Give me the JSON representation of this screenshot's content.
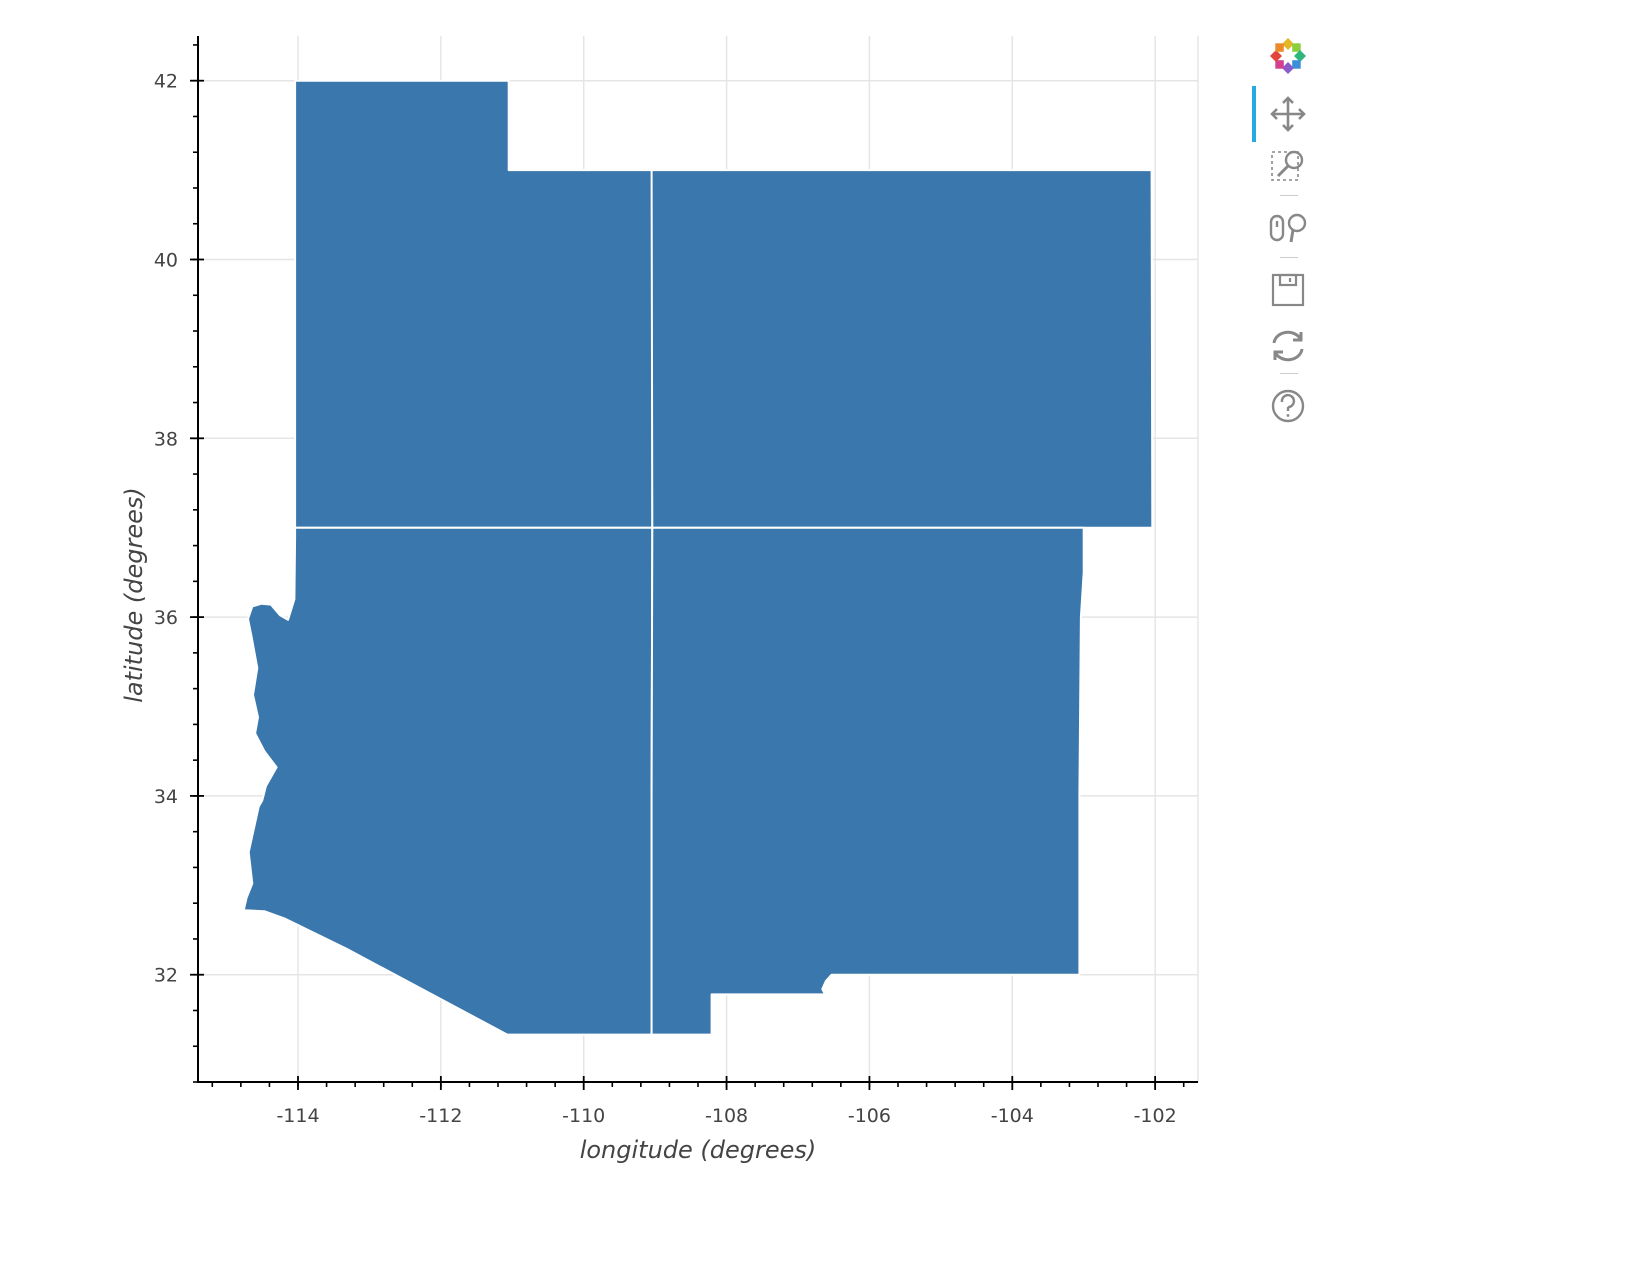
{
  "chart_data": {
    "type": "map",
    "xlabel": "longitude (degrees)",
    "ylabel": "latitude (degrees)",
    "xlim": [
      -115.4,
      -101.4
    ],
    "ylim": [
      30.8,
      42.5
    ],
    "x_ticks": [
      -114,
      -112,
      -110,
      -108,
      -106,
      -104,
      -102
    ],
    "y_ticks": [
      32,
      34,
      36,
      38,
      40,
      42
    ],
    "x_tick_labels": [
      "-114",
      "-112",
      "-110",
      "-108",
      "-106",
      "-104",
      "-102"
    ],
    "y_tick_labels": [
      "32",
      "34",
      "36",
      "38",
      "40",
      "42"
    ],
    "grid": true,
    "fill_color": "#3a77ad",
    "line_color": "#ffffff",
    "patches": [
      {
        "region": "northwest",
        "lon": [
          -114.04,
          -114.04,
          -111.05,
          -111.05,
          -109.04,
          -109.04,
          -114.04
        ],
        "lat": [
          37.0,
          42.0,
          42.0,
          41.0,
          41.0,
          37.0,
          37.0
        ]
      },
      {
        "region": "northeast",
        "lon": [
          -109.04,
          -109.05,
          -105.0,
          -102.05,
          -102.04,
          -102.04,
          -109.04
        ],
        "lat": [
          37.0,
          41.0,
          41.0,
          41.0,
          37.0,
          37.0,
          37.0
        ]
      },
      {
        "region": "southwest",
        "lon": [
          -114.04,
          -114.04,
          -114.05,
          -114.14,
          -114.25,
          -114.38,
          -114.51,
          -114.64,
          -114.7,
          -114.65,
          -114.57,
          -114.63,
          -114.56,
          -114.6,
          -114.47,
          -114.3,
          -114.45,
          -114.5,
          -114.55,
          -114.69,
          -114.64,
          -114.72,
          -114.76,
          -114.47,
          -114.19,
          -113.32,
          -111.07,
          -110.95,
          -109.05,
          -109.05,
          -109.04,
          -114.04
        ],
        "lat": [
          37.0,
          36.9,
          36.2,
          35.97,
          36.02,
          36.14,
          36.15,
          36.12,
          35.98,
          35.78,
          35.43,
          35.13,
          34.88,
          34.7,
          34.5,
          34.32,
          34.11,
          33.95,
          33.88,
          33.37,
          33.02,
          32.86,
          32.72,
          32.71,
          32.63,
          32.29,
          31.33,
          31.33,
          31.33,
          34.0,
          37.0,
          37.0
        ]
      },
      {
        "region": "southeast",
        "lon": [
          -109.04,
          -109.05,
          -109.05,
          -108.21,
          -108.21,
          -106.62,
          -106.66,
          -106.61,
          -106.53,
          -103.06,
          -103.06,
          -103.06,
          -103.04,
          -103.0,
          -103.0,
          -109.04
        ],
        "lat": [
          37.0,
          34.0,
          31.33,
          31.33,
          31.78,
          31.78,
          31.84,
          31.93,
          32.0,
          32.0,
          32.6,
          34.0,
          36.0,
          36.5,
          37.0,
          37.0
        ]
      }
    ]
  },
  "toolbar": {
    "logo": "bokeh-logo-icon",
    "tools": [
      {
        "name": "pan-icon",
        "active": true
      },
      {
        "name": "box-zoom-icon",
        "active": false
      },
      {
        "name": "wheel-zoom-icon",
        "active": false
      },
      {
        "name": "save-icon",
        "active": false
      },
      {
        "name": "reset-icon",
        "active": false
      },
      {
        "name": "help-icon",
        "active": false
      }
    ]
  }
}
